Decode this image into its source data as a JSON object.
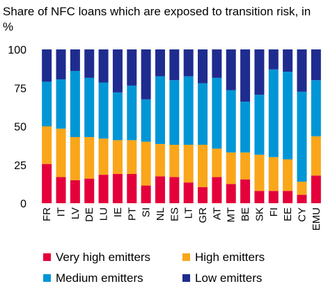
{
  "chart_data": {
    "type": "bar",
    "stacked": true,
    "title": "Share of NFC loans which are exposed to transition risk, in %",
    "xlabel": "",
    "ylabel": "",
    "ylim": [
      0,
      100
    ],
    "yticks": [
      0,
      25,
      50,
      75,
      100
    ],
    "grid": false,
    "legend_position": "bottom",
    "categories": [
      "FR",
      "IT",
      "LV",
      "DE",
      "LU",
      "IE",
      "PT",
      "SI",
      "NL",
      "ES",
      "LT",
      "GR",
      "AT",
      "MT",
      "BE",
      "SK",
      "FI",
      "EE",
      "CY",
      "EMU"
    ],
    "series": [
      {
        "name": "Very high emitters",
        "color": "#e4003a",
        "values": [
          25.5,
          17,
          15,
          16,
          18.5,
          19,
          19,
          11.5,
          17.5,
          17,
          13.5,
          10.5,
          17,
          12.5,
          15.5,
          8,
          8,
          8,
          5.5,
          18
        ]
      },
      {
        "name": "High emitters",
        "color": "#faa61a",
        "values": [
          24.5,
          31.5,
          28,
          27,
          23.5,
          22,
          22,
          28.5,
          21,
          21,
          24.5,
          27.5,
          18.5,
          20.5,
          17.5,
          23.5,
          22,
          20.5,
          8.5,
          25.5
        ]
      },
      {
        "name": "Medium emitters",
        "color": "#0096d6",
        "values": [
          29,
          32,
          43,
          38.5,
          36.5,
          31,
          35.5,
          27.5,
          44,
          42,
          44.5,
          40,
          46,
          40.5,
          33,
          39,
          57,
          57,
          58.5,
          36.5
        ]
      },
      {
        "name": "Low emitters",
        "color": "#1f2c8f",
        "values": [
          21,
          19.5,
          14,
          18.5,
          21.5,
          28,
          23.5,
          32.5,
          17.5,
          20,
          17.5,
          22,
          18.5,
          26.5,
          34,
          29.5,
          13,
          14.5,
          27.5,
          20
        ]
      }
    ]
  }
}
